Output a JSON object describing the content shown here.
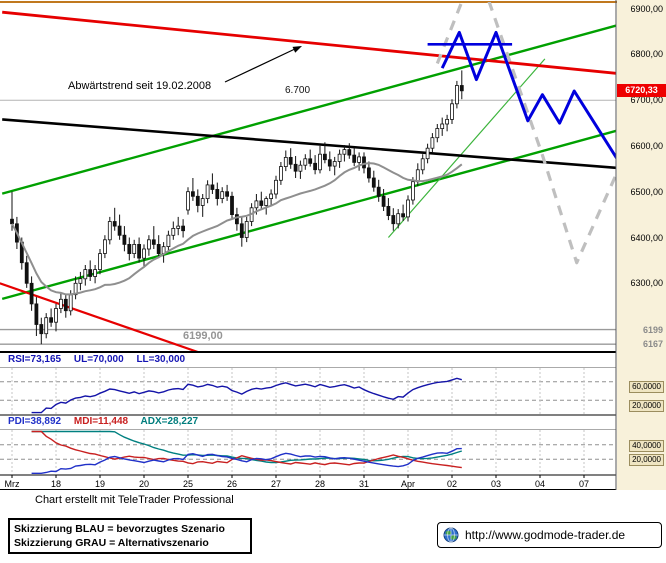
{
  "window": {
    "top_accent_color": "#c0781e"
  },
  "main_chart": {
    "annotation": "Abwärtstrend seit 19.02.2008",
    "level_6700_label": "6.700",
    "support_label": "6199,00"
  },
  "y_axis": {
    "price_labels": [
      {
        "text": "6900,00",
        "value": 6900
      },
      {
        "text": "6800,00",
        "value": 6800
      },
      {
        "text": "6700,00",
        "value": 6700
      },
      {
        "text": "6600,00",
        "value": 6600
      },
      {
        "text": "6500,00",
        "value": 6500
      },
      {
        "text": "6400,00",
        "value": 6400
      },
      {
        "text": "6300,00",
        "value": 6300
      }
    ],
    "support_labels": [
      {
        "text": "6199",
        "value": 6199
      },
      {
        "text": "6167",
        "value": 6167
      }
    ],
    "last_price_label": {
      "text": "6720,33",
      "value": 6720.33
    },
    "rsi_axis_labels": [
      {
        "text": "60,0000",
        "value": 60
      },
      {
        "text": "20,0000",
        "value": 20
      }
    ],
    "dmi_axis_labels": [
      {
        "text": "40,0000",
        "value": 40
      },
      {
        "text": "20,0000",
        "value": 20
      }
    ]
  },
  "rsi_panel": {
    "label_rsi": "RSI=73,165",
    "label_ul": "UL=70,000",
    "label_ll": "LL=30,000"
  },
  "dmi_panel": {
    "label_pdi": "PDI=38,892",
    "label_mdi": "MDI=11,448",
    "label_adx": "ADX=28,227"
  },
  "footer": {
    "credit": "Chart erstellt mit TeleTrader Professional"
  },
  "legend_box": {
    "line1": "Skizzierung BLAU = bevorzugtes Szenario",
    "line2": "Skizzierung GRAU = Alternativszenario"
  },
  "url_box": {
    "url": "http://www.godmode-trader.de"
  },
  "chart_data": {
    "type": "candlestick",
    "timeframe": "hourly",
    "candles_per_day": 9,
    "x_ticks": [
      "Mrz",
      "18",
      "19",
      "20",
      "25",
      "26",
      "27",
      "28",
      "31",
      "Apr",
      "02",
      "03",
      "04",
      "07"
    ],
    "price_axis": {
      "top": 6910,
      "bottom": 6150
    },
    "last_price": 6720.33,
    "support_levels": [
      6199,
      6167
    ],
    "h_levels": [
      6700,
      6199,
      6167
    ],
    "sma_window": 20,
    "indicators": {
      "rsi": {
        "period": 14,
        "last": 73.165,
        "upper_level": 70,
        "lower_level": 30,
        "range": [
          0,
          100
        ]
      },
      "dmi": {
        "period": 14,
        "pdi_last": 38.892,
        "mdi_last": 11.448,
        "adx_last": 28.227,
        "range": [
          0,
          60
        ],
        "levels": [
          40,
          20
        ]
      }
    },
    "overlays": {
      "red_downtrend": [
        [
          -2,
          6892
        ],
        [
          126,
          6756
        ]
      ],
      "red_minor": [
        [
          -2.5,
          6300
        ],
        [
          38,
          6150
        ]
      ],
      "black_trend": [
        [
          -2,
          6658
        ],
        [
          126,
          6550
        ]
      ],
      "green_channel_upper": [
        [
          -2,
          6496
        ],
        [
          126,
          6870
        ]
      ],
      "green_channel_lower": [
        [
          -2,
          6266
        ],
        [
          126,
          6640
        ]
      ],
      "green_minor": [
        [
          77,
          6400
        ],
        [
          109,
          6790
        ]
      ],
      "blue_resistance": [
        [
          85,
          6822
        ],
        [
          102.3,
          6822
        ]
      ],
      "blue_scenario": [
        [
          88,
          6770
        ],
        [
          91.5,
          6848
        ],
        [
          95,
          6745
        ],
        [
          99,
          6848
        ],
        [
          105.5,
          6655
        ],
        [
          108.5,
          6712
        ],
        [
          112,
          6650
        ],
        [
          115,
          6720
        ],
        [
          124,
          6568
        ]
      ],
      "gray_scenario": [
        [
          87,
          6780
        ],
        [
          95,
          6995
        ],
        [
          108.5,
          6580
        ],
        [
          115.5,
          6345
        ],
        [
          124.5,
          6560
        ]
      ]
    },
    "colors": {
      "candle": "#111111",
      "up_fill": "#ffffff",
      "trend_red": "#e60000",
      "channel_green": "#00a000",
      "sketch_blue": "#0000dd",
      "sketch_gray": "#bfbfbf",
      "ma_gray": "#8f8f8f",
      "rsi_line": "#1414a8",
      "pdi_line": "#2030c8",
      "mdi_line": "#c82020",
      "adx_line": "#008080",
      "last_price_bg": "#ee0000"
    },
    "candles_ohlc": [
      [
        6440,
        6500,
        6415,
        6430
      ],
      [
        6430,
        6445,
        6375,
        6390
      ],
      [
        6390,
        6400,
        6330,
        6345
      ],
      [
        6345,
        6360,
        6290,
        6300
      ],
      [
        6300,
        6315,
        6240,
        6255
      ],
      [
        6255,
        6270,
        6185,
        6210
      ],
      [
        6210,
        6225,
        6167,
        6190
      ],
      [
        6190,
        6235,
        6180,
        6225
      ],
      [
        6225,
        6245,
        6205,
        6215
      ],
      [
        6215,
        6255,
        6195,
        6245
      ],
      [
        6245,
        6280,
        6235,
        6265
      ],
      [
        6265,
        6275,
        6225,
        6240
      ],
      [
        6240,
        6285,
        6230,
        6275
      ],
      [
        6275,
        6315,
        6265,
        6300
      ],
      [
        6300,
        6325,
        6285,
        6310
      ],
      [
        6310,
        6340,
        6295,
        6330
      ],
      [
        6330,
        6350,
        6305,
        6315
      ],
      [
        6315,
        6340,
        6300,
        6330
      ],
      [
        6330,
        6375,
        6320,
        6365
      ],
      [
        6365,
        6405,
        6355,
        6395
      ],
      [
        6395,
        6445,
        6385,
        6435
      ],
      [
        6435,
        6465,
        6415,
        6425
      ],
      [
        6425,
        6450,
        6395,
        6405
      ],
      [
        6405,
        6425,
        6370,
        6385
      ],
      [
        6385,
        6400,
        6350,
        6365
      ],
      [
        6365,
        6395,
        6355,
        6385
      ],
      [
        6385,
        6400,
        6345,
        6355
      ],
      [
        6355,
        6385,
        6335,
        6375
      ],
      [
        6375,
        6405,
        6360,
        6395
      ],
      [
        6395,
        6425,
        6375,
        6385
      ],
      [
        6385,
        6405,
        6355,
        6365
      ],
      [
        6365,
        6390,
        6345,
        6380
      ],
      [
        6380,
        6415,
        6370,
        6405
      ],
      [
        6405,
        6435,
        6395,
        6420
      ],
      [
        6420,
        6445,
        6405,
        6425
      ],
      [
        6425,
        6440,
        6400,
        6415
      ],
      [
        6460,
        6510,
        6450,
        6500
      ],
      [
        6500,
        6530,
        6480,
        6490
      ],
      [
        6490,
        6505,
        6455,
        6470
      ],
      [
        6470,
        6495,
        6445,
        6485
      ],
      [
        6485,
        6525,
        6475,
        6515
      ],
      [
        6515,
        6540,
        6495,
        6505
      ],
      [
        6505,
        6520,
        6470,
        6485
      ],
      [
        6485,
        6510,
        6475,
        6500
      ],
      [
        6500,
        6515,
        6480,
        6490
      ],
      [
        6490,
        6500,
        6440,
        6450
      ],
      [
        6450,
        6465,
        6415,
        6430
      ],
      [
        6430,
        6445,
        6380,
        6400
      ],
      [
        6400,
        6445,
        6390,
        6435
      ],
      [
        6435,
        6475,
        6425,
        6465
      ],
      [
        6465,
        6495,
        6450,
        6480
      ],
      [
        6480,
        6500,
        6460,
        6470
      ],
      [
        6470,
        6490,
        6450,
        6485
      ],
      [
        6485,
        6505,
        6470,
        6495
      ],
      [
        6495,
        6535,
        6485,
        6525
      ],
      [
        6525,
        6565,
        6515,
        6555
      ],
      [
        6555,
        6590,
        6545,
        6575
      ],
      [
        6575,
        6595,
        6550,
        6560
      ],
      [
        6560,
        6578,
        6530,
        6545
      ],
      [
        6545,
        6568,
        6528,
        6558
      ],
      [
        6558,
        6582,
        6548,
        6572
      ],
      [
        6572,
        6592,
        6555,
        6562
      ],
      [
        6562,
        6580,
        6538,
        6548
      ],
      [
        6548,
        6600,
        6540,
        6582
      ],
      [
        6582,
        6608,
        6562,
        6570
      ],
      [
        6570,
        6588,
        6545,
        6556
      ],
      [
        6556,
        6576,
        6536,
        6566
      ],
      [
        6566,
        6592,
        6552,
        6582
      ],
      [
        6582,
        6602,
        6566,
        6592
      ],
      [
        6592,
        6606,
        6572,
        6580
      ],
      [
        6580,
        6596,
        6556,
        6564
      ],
      [
        6564,
        6586,
        6546,
        6576
      ],
      [
        6576,
        6586,
        6540,
        6552
      ],
      [
        6552,
        6566,
        6520,
        6530
      ],
      [
        6530,
        6546,
        6500,
        6510
      ],
      [
        6510,
        6526,
        6478,
        6490
      ],
      [
        6490,
        6506,
        6458,
        6468
      ],
      [
        6468,
        6486,
        6438,
        6448
      ],
      [
        6448,
        6464,
        6415,
        6430
      ],
      [
        6430,
        6462,
        6420,
        6452
      ],
      [
        6452,
        6472,
        6436,
        6445
      ],
      [
        6445,
        6492,
        6435,
        6482
      ],
      [
        6482,
        6532,
        6472,
        6522
      ],
      [
        6522,
        6562,
        6512,
        6548
      ],
      [
        6548,
        6582,
        6538,
        6572
      ],
      [
        6572,
        6605,
        6562,
        6595
      ],
      [
        6595,
        6628,
        6585,
        6618
      ],
      [
        6618,
        6648,
        6608,
        6638
      ],
      [
        6638,
        6662,
        6622,
        6648
      ],
      [
        6648,
        6668,
        6632,
        6658
      ],
      [
        6658,
        6702,
        6648,
        6692
      ],
      [
        6692,
        6742,
        6682,
        6732
      ],
      [
        6732,
        6765,
        6702,
        6720.33
      ]
    ]
  }
}
